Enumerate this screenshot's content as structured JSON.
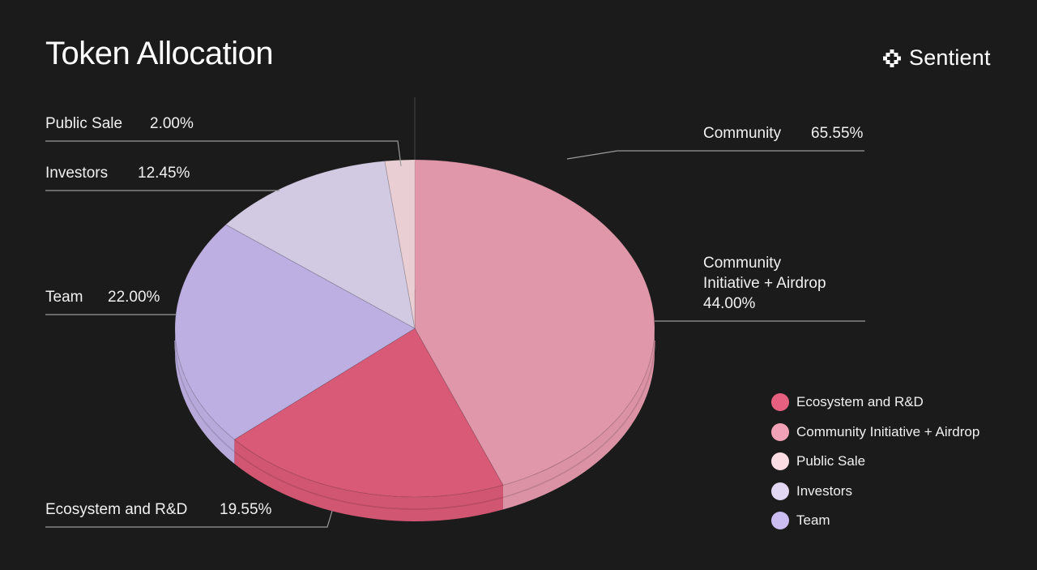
{
  "title": "Token Allocation",
  "brand": {
    "name": "Sentient",
    "icon": "sentient-logo-icon"
  },
  "chart_data": {
    "type": "pie",
    "title": "Token Allocation",
    "slices": [
      {
        "label": "Ecosystem and R&D",
        "value": 19.55,
        "display": "19.55%",
        "color": "#e8607f"
      },
      {
        "label": "Community Initiative + Airdrop",
        "value": 44.0,
        "display": "44.00%",
        "color": "#f2a2b6"
      },
      {
        "label": "Public Sale",
        "value": 2.0,
        "display": "2.00%",
        "color": "#fbdde3"
      },
      {
        "label": "Investors",
        "value": 12.45,
        "display": "12.45%",
        "color": "#e2d8f3"
      },
      {
        "label": "Team",
        "value": 22.0,
        "display": "22.00%",
        "color": "#cbbcf2"
      }
    ],
    "group": {
      "label": "Community",
      "value": 65.55,
      "display": "65.55%",
      "members": [
        "Ecosystem and R&D",
        "Community Initiative + Airdrop",
        "Public Sale"
      ]
    },
    "callouts": {
      "public_sale": {
        "name": "Public Sale",
        "value": "2.00%"
      },
      "investors": {
        "name": "Investors",
        "value": "12.45%"
      },
      "team": {
        "name": "Team",
        "value": "22.00%"
      },
      "ecosystem": {
        "name": "Ecosystem and R&D",
        "value": "19.55%"
      },
      "community": {
        "name": "Community",
        "value": "65.55%"
      },
      "community_airdrop": {
        "line1": "Community",
        "line2": "Initiative + Airdrop",
        "value": "44.00%"
      }
    },
    "legend": [
      "Ecosystem and R&D",
      "Community Initiative + Airdrop",
      "Public Sale",
      "Investors",
      "Team"
    ],
    "legend_position": "bottom-right"
  }
}
